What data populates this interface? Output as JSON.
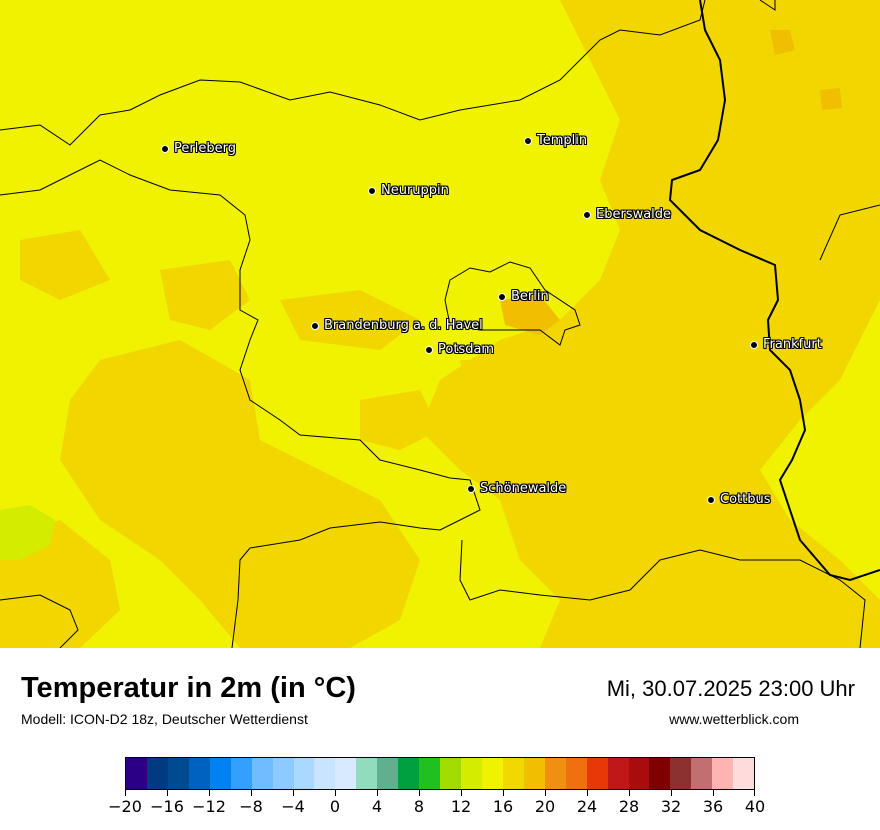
{
  "map": {
    "cities": [
      {
        "name": "Perleberg"
      },
      {
        "name": "Templin"
      },
      {
        "name": "Neuruppin"
      },
      {
        "name": "Eberswalde"
      },
      {
        "name": "Berlin"
      },
      {
        "name": "Brandenburg a. d. Havel"
      },
      {
        "name": "Potsdam"
      },
      {
        "name": "Frankfurt"
      },
      {
        "name": "Schönewalde"
      },
      {
        "name": "Cottbus"
      }
    ],
    "colors": {
      "base_fill": "#f0f200",
      "warm_fill": "#f2d600",
      "mid_fill": "#d4ec00",
      "hot_fill": "#f0c000",
      "border": "#000000"
    }
  },
  "footer": {
    "title": "Temperatur in 2m (in °C)",
    "subtitle": "Modell: ICON-D2 18z, Deutscher Wetterdienst",
    "datetime": "Mi, 30.07.2025 23:00 Uhr",
    "website": "www.wetterblick.com"
  },
  "legend": {
    "colors": [
      "#2c0085",
      "#003a80",
      "#004a90",
      "#0062c0",
      "#0082f0",
      "#33a0ff",
      "#70bcff",
      "#8ccaff",
      "#aad8ff",
      "#c8e4ff",
      "#d8eaff",
      "#90dcbc",
      "#60b090",
      "#00a040",
      "#20c020",
      "#a0dc00",
      "#d4ec00",
      "#f0f200",
      "#f0d800",
      "#f0c000",
      "#f09010",
      "#f07010",
      "#e83808",
      "#c01818",
      "#a80c0c",
      "#800000",
      "#8c3030",
      "#c07070",
      "#ffb4b4",
      "#ffdcdc"
    ],
    "tick_labels": [
      "−20",
      "−16",
      "−12",
      "−8",
      "−4",
      "0",
      "4",
      "8",
      "12",
      "16",
      "20",
      "24",
      "28",
      "32",
      "36",
      "40"
    ]
  }
}
